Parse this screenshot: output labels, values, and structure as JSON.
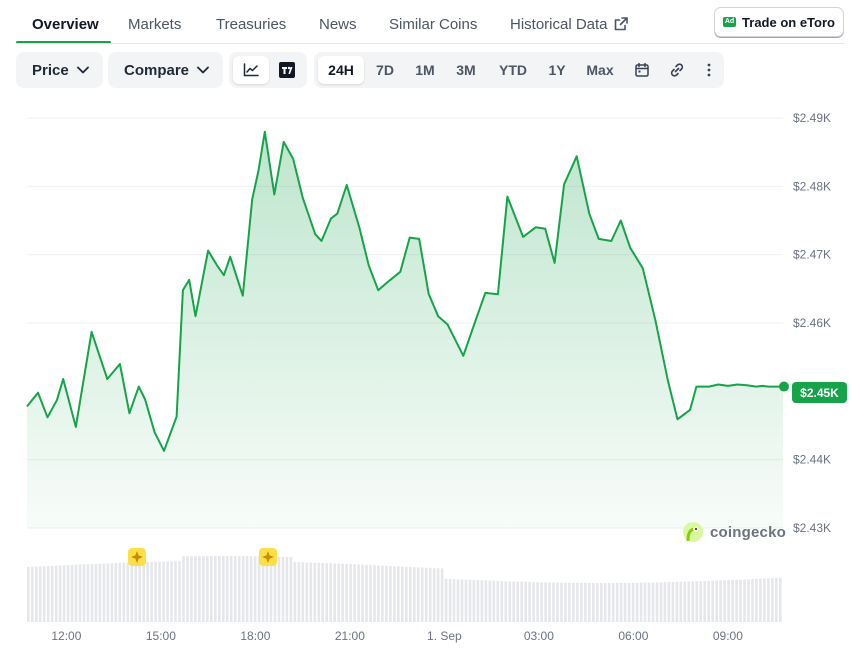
{
  "tabs": [
    {
      "label": "Overview"
    },
    {
      "label": "Markets"
    },
    {
      "label": "Treasuries"
    },
    {
      "label": "News"
    },
    {
      "label": "Similar Coins"
    },
    {
      "label": "Historical Data"
    }
  ],
  "ad": {
    "badge": "Ad",
    "label": "Trade on eToro"
  },
  "toolbar": {
    "price_label": "Price",
    "compare_label": "Compare",
    "ranges": [
      "24H",
      "7D",
      "1M",
      "3M",
      "YTD",
      "1Y",
      "Max"
    ],
    "active_range": "24H"
  },
  "colors": {
    "accent": "#16a34a",
    "line": "#16a34a"
  },
  "branding": {
    "label": "coingecko"
  },
  "chart_data": {
    "type": "area",
    "title": "",
    "xlabel": "",
    "ylabel": "",
    "y_ticks": [
      "$2.49K",
      "$2.48K",
      "$2.47K",
      "$2.46K",
      "$2.44K",
      "$2.43K"
    ],
    "y_tick_values": [
      2490,
      2480,
      2470,
      2460,
      2440,
      2430
    ],
    "ylim": [
      2430,
      2490
    ],
    "x_ticks": [
      "12:00",
      "15:00",
      "18:00",
      "21:00",
      "1. Sep",
      "03:00",
      "06:00",
      "09:00"
    ],
    "xlim_hours": [
      10.75,
      34.75
    ],
    "current_price_label": "$2.45K",
    "current_price": 2450.7,
    "grid": true,
    "legend": "none",
    "series": [
      {
        "x": [
          10.75,
          11.1,
          11.4,
          11.7,
          11.9,
          12.3,
          12.8,
          13.3,
          13.7,
          14.0,
          14.3,
          14.5,
          14.8,
          15.1,
          15.5,
          15.7,
          15.9,
          16.1,
          16.5,
          16.8,
          17.0,
          17.2,
          17.6,
          17.9,
          18.1,
          18.3,
          18.6,
          18.9,
          19.2,
          19.5,
          19.9,
          20.1,
          20.4,
          20.6,
          20.9,
          21.3,
          21.6,
          21.9,
          22.2,
          22.6,
          22.9,
          23.2,
          23.5,
          23.8,
          24.1,
          24.6,
          25.0,
          25.3,
          25.7,
          26.0,
          26.5,
          26.9,
          27.2,
          27.5,
          27.8,
          28.2,
          28.6,
          28.9,
          29.3,
          29.6,
          29.9,
          30.3,
          30.7,
          31.1,
          31.4,
          31.8,
          32.0,
          32.4,
          32.7,
          33.0,
          33.3,
          33.6,
          33.9,
          34.1,
          34.3,
          34.5,
          34.75
        ],
        "values": [
          2447.8,
          2449.8,
          2446.2,
          2448.7,
          2451.8,
          2444.8,
          2458.7,
          2451.8,
          2454.0,
          2446.8,
          2450.7,
          2448.8,
          2444.0,
          2441.3,
          2446.3,
          2464.8,
          2466.3,
          2461.0,
          2470.6,
          2468.3,
          2467.0,
          2469.7,
          2464.0,
          2478.1,
          2482.3,
          2488.0,
          2478.8,
          2486.5,
          2484.0,
          2478.4,
          2473.0,
          2472.0,
          2475.3,
          2476.0,
          2480.2,
          2474.0,
          2468.4,
          2464.8,
          2466.0,
          2467.5,
          2472.5,
          2472.3,
          2464.3,
          2461.0,
          2459.8,
          2455.2,
          2460.5,
          2464.4,
          2464.2,
          2478.5,
          2472.6,
          2474.0,
          2473.8,
          2468.8,
          2480.3,
          2484.4,
          2476.0,
          2472.3,
          2472.0,
          2475.0,
          2471.0,
          2468.0,
          2460.4,
          2451.5,
          2445.9,
          2447.3,
          2450.7,
          2450.7,
          2451.0,
          2450.8,
          2451.0,
          2450.9,
          2450.7,
          2450.8,
          2450.7,
          2450.7,
          2450.7
        ],
        "volume_note": ""
      }
    ]
  }
}
